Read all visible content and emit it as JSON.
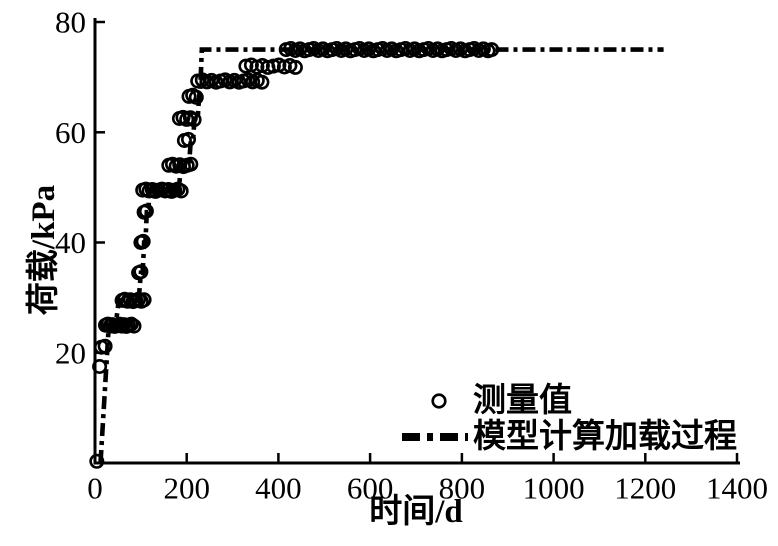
{
  "figure": {
    "background": "#ffffff",
    "ink": "#000000"
  },
  "chart_data": {
    "type": "scatter",
    "title": "",
    "xlabel": "时间/d",
    "ylabel": "荷载/kPa",
    "xlim": [
      0,
      1400
    ],
    "ylim": [
      0,
      80
    ],
    "x_ticks": [
      0,
      200,
      400,
      600,
      800,
      1000,
      1200,
      1400
    ],
    "y_ticks": [
      20,
      40,
      60,
      80
    ],
    "grid": false,
    "frame": "left-bottom-axes-only",
    "legend": {
      "position": "inside-bottom-right",
      "entries": [
        {
          "marker": "open-circle",
          "label": "测量值"
        },
        {
          "marker": "dash-dot-line",
          "label": "模型计算加载过程"
        }
      ]
    },
    "series": [
      {
        "name": "测量值",
        "type": "scatter",
        "marker": "open-circle",
        "clusters": [
          {
            "load_kpa": 0.3,
            "days": [
              4
            ]
          },
          {
            "load_kpa": 17.5,
            "days": [
              10
            ]
          },
          {
            "load_kpa": 21,
            "days": [
              14,
              22
            ]
          },
          {
            "load_kpa": 25,
            "days": [
              23,
              28,
              33,
              38,
              43,
              48,
              53,
              58,
              63,
              68,
              73,
              79,
              85
            ]
          },
          {
            "load_kpa": 29.5,
            "days": [
              59,
              65,
              71,
              77,
              83,
              89,
              95,
              101,
              107
            ]
          },
          {
            "load_kpa": 34.5,
            "days": [
              95,
              100
            ]
          },
          {
            "load_kpa": 40,
            "days": [
              100,
              105
            ]
          },
          {
            "load_kpa": 45.5,
            "days": [
              107,
              112
            ]
          },
          {
            "load_kpa": 49.5,
            "days": [
              104,
              111,
              118,
              125,
              132,
              139,
              146,
              153,
              160,
              167,
              174,
              181,
              188
            ]
          },
          {
            "load_kpa": 54,
            "days": [
              161,
              169,
              177,
              185,
              193,
              201,
              209
            ]
          },
          {
            "load_kpa": 58.5,
            "days": [
              195,
              204
            ]
          },
          {
            "load_kpa": 62.5,
            "days": [
              184,
              192,
              200,
              208,
              216
            ]
          },
          {
            "load_kpa": 66.5,
            "days": [
              205,
              213,
              221
            ]
          },
          {
            "load_kpa": 69.3,
            "days": [
              224,
              234,
              244,
              254,
              264,
              274,
              284,
              294,
              304,
              314,
              324,
              334,
              344,
              354,
              364
            ]
          },
          {
            "load_kpa": 72,
            "days": [
              329,
              341,
              353,
              365,
              377,
              389,
              401,
              413,
              425,
              437
            ]
          },
          {
            "load_kpa": 75,
            "days": [
              417,
              427,
              437,
              447,
              457,
              467,
              477,
              487,
              497,
              507,
              517,
              527,
              537,
              547,
              557,
              567,
              577,
              587,
              597,
              607,
              617,
              627,
              637,
              647,
              657,
              667,
              677,
              687,
              697,
              707,
              717,
              727,
              737,
              747,
              757,
              767,
              777,
              787,
              797,
              807,
              817,
              827,
              837,
              847,
              857,
              865
            ]
          }
        ]
      },
      {
        "name": "模型计算加载过程",
        "type": "line",
        "style": "dash-dot",
        "points": [
          [
            12,
            0
          ],
          [
            30,
            25
          ],
          [
            45,
            25
          ],
          [
            52,
            29.5
          ],
          [
            95,
            29.5
          ],
          [
            100,
            34.5
          ],
          [
            104,
            34.5
          ],
          [
            107,
            40
          ],
          [
            110,
            40
          ],
          [
            113,
            45.5
          ],
          [
            116,
            45.5
          ],
          [
            119,
            49.5
          ],
          [
            183,
            49.5
          ],
          [
            187,
            54
          ],
          [
            205,
            54
          ],
          [
            209,
            58.5
          ],
          [
            214,
            58.5
          ],
          [
            217,
            62.5
          ],
          [
            224,
            62.5
          ],
          [
            227,
            66.5
          ],
          [
            229,
            66.5
          ],
          [
            233,
            75
          ],
          [
            1240,
            75
          ]
        ]
      }
    ]
  }
}
